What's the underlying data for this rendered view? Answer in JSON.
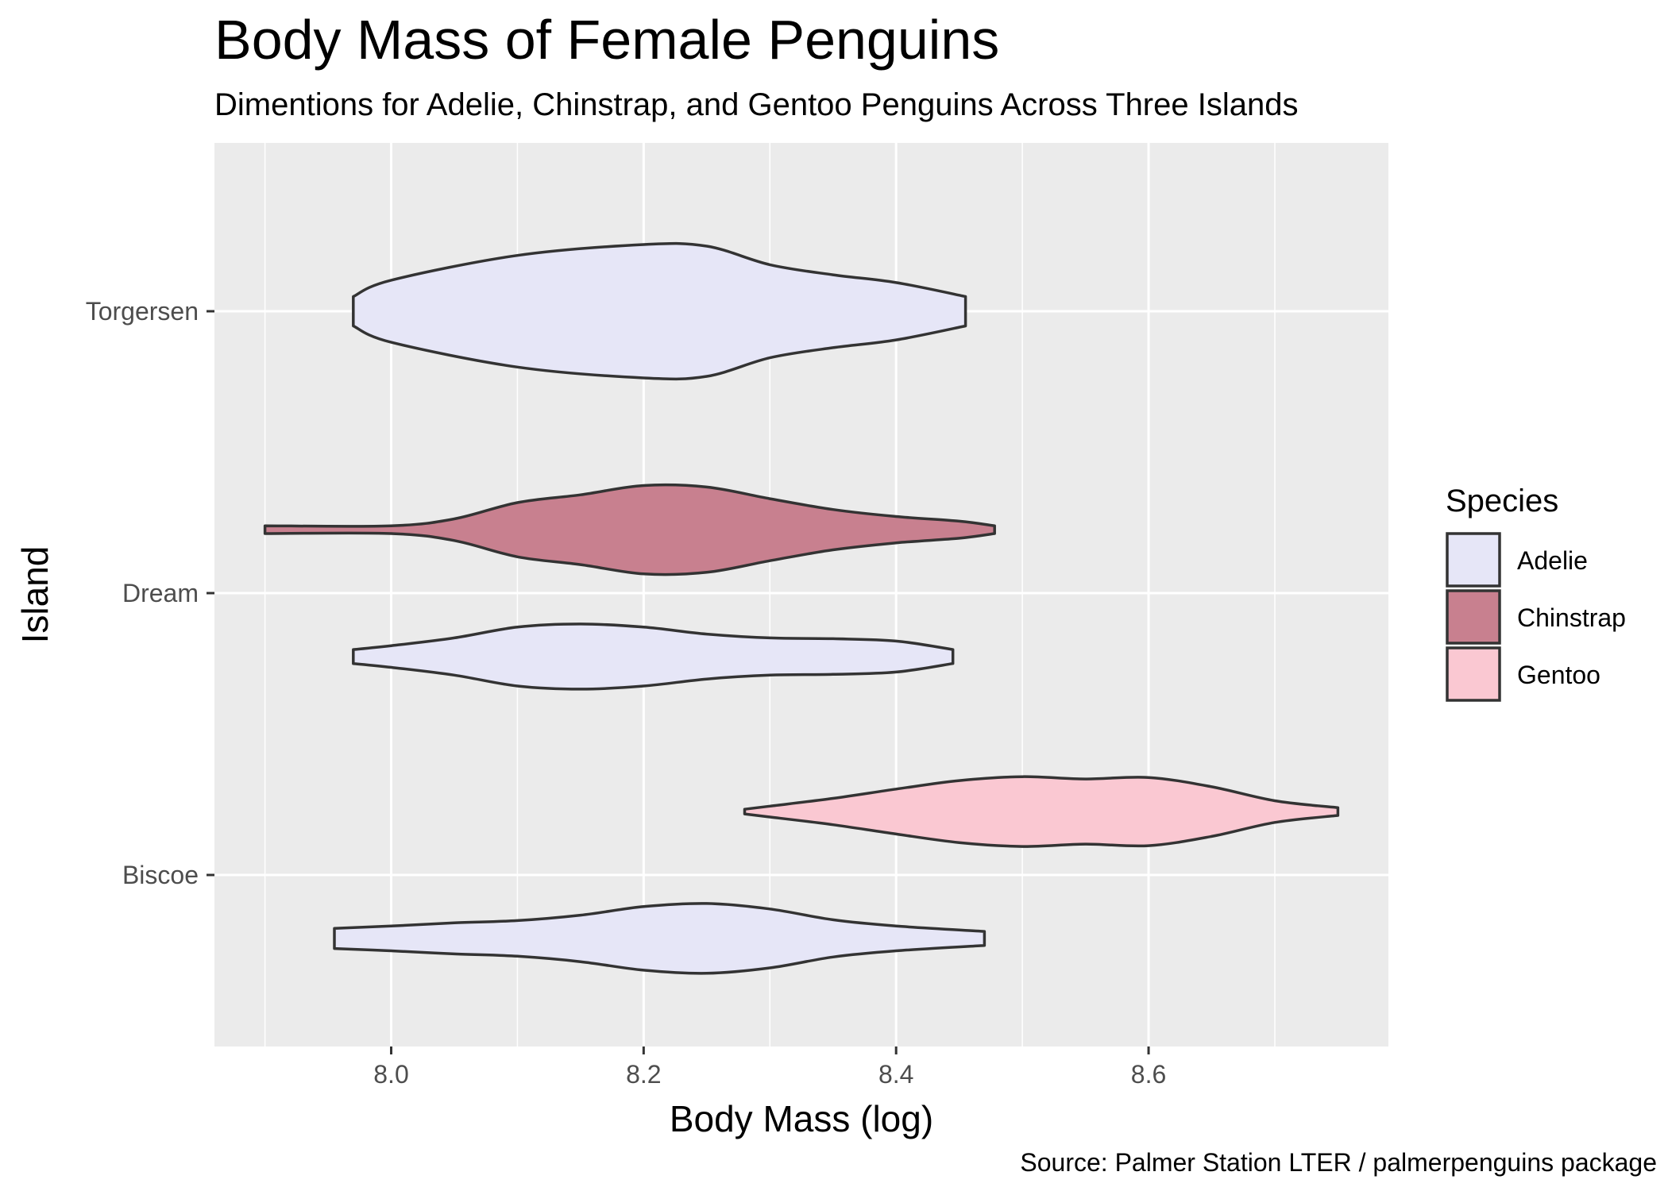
{
  "chart_data": {
    "type": "violin",
    "title": "Body Mass of Female Penguins",
    "subtitle": "Dimentions for Adelie, Chinstrap, and Gentoo Penguins Across Three Islands",
    "caption": "Source: Palmer Station LTER / palmerpenguins package",
    "xlabel": "Body Mass (log)",
    "ylabel": "Island",
    "xlim": [
      7.86,
      8.79
    ],
    "x_ticks": [
      {
        "value": 8.0,
        "label": "8.0"
      },
      {
        "value": 8.2,
        "label": "8.2"
      },
      {
        "value": 8.4,
        "label": "8.4"
      },
      {
        "value": 8.6,
        "label": "8.6"
      }
    ],
    "categories": [
      "Torgersen",
      "Dream",
      "Biscoe"
    ],
    "grid": true,
    "legend": {
      "title": "Species",
      "position": "right",
      "entries": [
        {
          "name": "Adelie",
          "color": "#e6e6f7"
        },
        {
          "name": "Chinstrap",
          "color": "#c8808f"
        },
        {
          "name": "Gentoo",
          "color": "#fac8d2"
        }
      ]
    },
    "violins": [
      {
        "island": "Torgersen",
        "species": "Adelie",
        "color": "#e6e6f7",
        "x_min": 7.97,
        "x_max": 8.455,
        "profile": [
          [
            7.97,
            0.19
          ],
          [
            8.0,
            0.4
          ],
          [
            8.1,
            0.72
          ],
          [
            8.2,
            0.86
          ],
          [
            8.25,
            0.84
          ],
          [
            8.3,
            0.6
          ],
          [
            8.35,
            0.47
          ],
          [
            8.4,
            0.37
          ],
          [
            8.455,
            0.19
          ]
        ]
      },
      {
        "island": "Dream",
        "species": "Chinstrap",
        "color": "#c8808f",
        "x_min": 7.9,
        "x_max": 8.478,
        "profile": [
          [
            7.9,
            0.05
          ],
          [
            8.0,
            0.05
          ],
          [
            8.05,
            0.14
          ],
          [
            8.1,
            0.35
          ],
          [
            8.15,
            0.45
          ],
          [
            8.2,
            0.57
          ],
          [
            8.25,
            0.55
          ],
          [
            8.3,
            0.4
          ],
          [
            8.35,
            0.26
          ],
          [
            8.4,
            0.17
          ],
          [
            8.45,
            0.11
          ],
          [
            8.478,
            0.05
          ]
        ]
      },
      {
        "island": "Dream",
        "species": "Adelie",
        "color": "#e6e6f7",
        "x_min": 7.97,
        "x_max": 8.445,
        "profile": [
          [
            7.97,
            0.09
          ],
          [
            8.0,
            0.14
          ],
          [
            8.05,
            0.24
          ],
          [
            8.1,
            0.38
          ],
          [
            8.15,
            0.42
          ],
          [
            8.2,
            0.38
          ],
          [
            8.25,
            0.29
          ],
          [
            8.3,
            0.24
          ],
          [
            8.35,
            0.23
          ],
          [
            8.4,
            0.2
          ],
          [
            8.445,
            0.09
          ]
        ]
      },
      {
        "island": "Biscoe",
        "species": "Gentoo",
        "color": "#fac8d2",
        "x_min": 8.28,
        "x_max": 8.75,
        "profile": [
          [
            8.28,
            0.03
          ],
          [
            8.3,
            0.07
          ],
          [
            8.35,
            0.17
          ],
          [
            8.4,
            0.29
          ],
          [
            8.45,
            0.4
          ],
          [
            8.5,
            0.45
          ],
          [
            8.55,
            0.42
          ],
          [
            8.6,
            0.44
          ],
          [
            8.65,
            0.32
          ],
          [
            8.7,
            0.14
          ],
          [
            8.75,
            0.05
          ]
        ]
      },
      {
        "island": "Biscoe",
        "species": "Adelie",
        "color": "#e6e6f7",
        "x_min": 7.955,
        "x_max": 8.47,
        "profile": [
          [
            7.955,
            0.13
          ],
          [
            8.0,
            0.16
          ],
          [
            8.05,
            0.2
          ],
          [
            8.1,
            0.23
          ],
          [
            8.15,
            0.3
          ],
          [
            8.2,
            0.41
          ],
          [
            8.25,
            0.45
          ],
          [
            8.3,
            0.38
          ],
          [
            8.35,
            0.24
          ],
          [
            8.4,
            0.16
          ],
          [
            8.47,
            0.09
          ]
        ]
      }
    ]
  }
}
